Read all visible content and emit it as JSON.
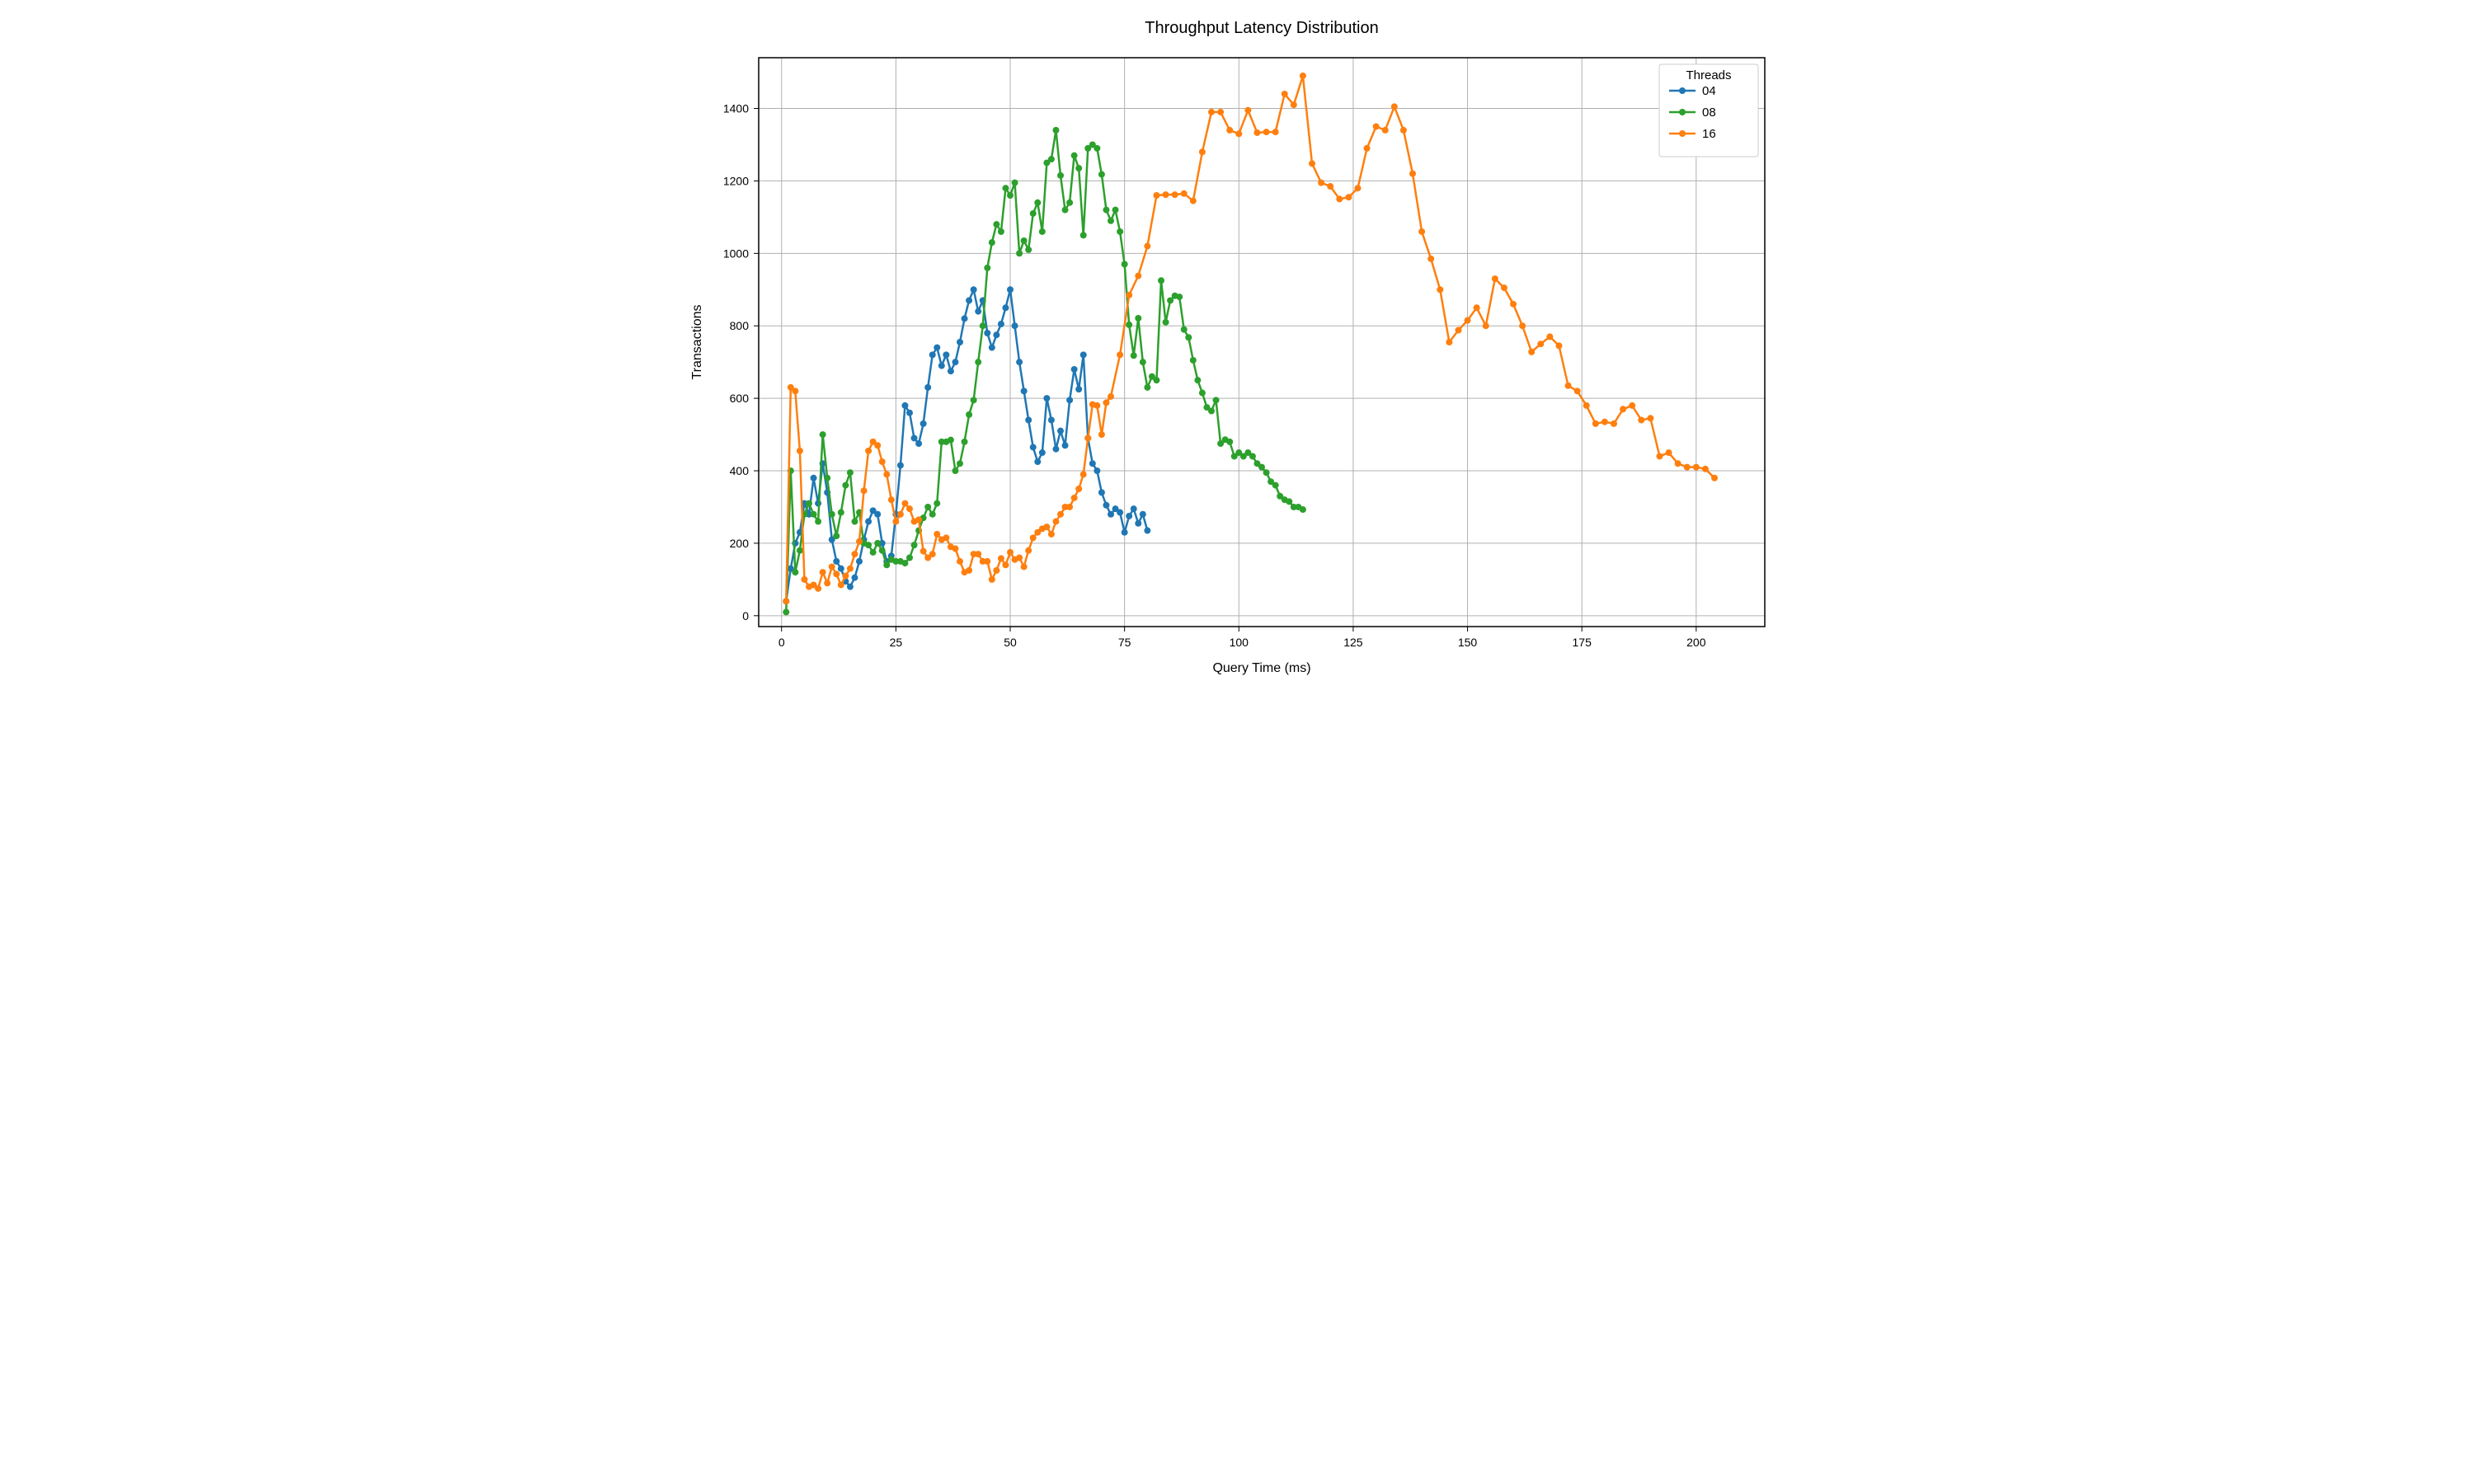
{
  "chart": {
    "type": "line",
    "title": "Throughput Latency Distribution",
    "title_fontsize": 20,
    "xlabel": "Query Time (ms)",
    "ylabel": "Transactions",
    "label_fontsize": 16,
    "tick_fontsize": 14,
    "xlim": [
      -5,
      215
    ],
    "ylim": [
      -30,
      1540
    ],
    "xticks": [
      0,
      25,
      50,
      75,
      100,
      125,
      150,
      175,
      200
    ],
    "yticks": [
      0,
      200,
      400,
      600,
      800,
      1000,
      1200,
      1400
    ],
    "background_color": "#ffffff",
    "grid_color": "#b0b0b0",
    "grid": true,
    "line_width": 2.5,
    "marker_size": 4,
    "legend": {
      "title": "Threads",
      "position": "upper-right",
      "labels": [
        "04",
        "08",
        "16"
      ]
    },
    "series": [
      {
        "name": "04",
        "color": "#1f77b4",
        "x": [
          1,
          2,
          3,
          4,
          5,
          6,
          7,
          8,
          9,
          10,
          11,
          12,
          13,
          14,
          15,
          16,
          17,
          18,
          19,
          20,
          21,
          22,
          23,
          24,
          25,
          26,
          27,
          28,
          29,
          30,
          31,
          32,
          33,
          34,
          35,
          36,
          37,
          38,
          39,
          40,
          41,
          42,
          43,
          44,
          45,
          46,
          47,
          48,
          49,
          50,
          51,
          52,
          53,
          54,
          55,
          56,
          57,
          58,
          59,
          60,
          61,
          62,
          63,
          64,
          65,
          66,
          67,
          68,
          69,
          70,
          71,
          72,
          73,
          74,
          75,
          76,
          77,
          78,
          79,
          80
        ],
        "y": [
          40,
          130,
          200,
          230,
          310,
          280,
          380,
          310,
          420,
          340,
          210,
          150,
          130,
          95,
          80,
          105,
          150,
          210,
          260,
          290,
          280,
          200,
          150,
          165,
          280,
          415,
          580,
          560,
          490,
          475,
          530,
          630,
          720,
          740,
          690,
          720,
          675,
          700,
          755,
          820,
          870,
          900,
          840,
          870,
          780,
          740,
          775,
          805,
          850,
          900,
          800,
          700,
          620,
          540,
          465,
          425,
          450,
          600,
          540,
          460,
          510,
          470,
          595,
          680,
          625,
          720,
          490,
          420,
          400,
          340,
          305,
          280,
          295,
          285,
          230,
          275,
          295,
          255,
          280,
          235
        ]
      },
      {
        "name": "08",
        "color": "#2ca02c",
        "x": [
          1,
          2,
          3,
          4,
          5,
          6,
          7,
          8,
          9,
          10,
          11,
          12,
          13,
          14,
          15,
          16,
          17,
          18,
          19,
          20,
          21,
          22,
          23,
          24,
          25,
          26,
          27,
          28,
          29,
          30,
          31,
          32,
          33,
          34,
          35,
          36,
          37,
          38,
          39,
          40,
          41,
          42,
          43,
          44,
          45,
          46,
          47,
          48,
          49,
          50,
          51,
          52,
          53,
          54,
          55,
          56,
          57,
          58,
          59,
          60,
          61,
          62,
          63,
          64,
          65,
          66,
          67,
          68,
          69,
          70,
          71,
          72,
          73,
          74,
          75,
          76,
          77,
          78,
          79,
          80,
          81,
          82,
          83,
          84,
          85,
          86,
          87,
          88,
          89,
          90,
          91,
          92,
          93,
          94,
          95,
          96,
          97,
          98,
          99,
          100,
          101,
          102,
          103,
          104,
          105,
          106,
          107,
          108,
          109,
          110,
          111,
          112,
          113,
          114
        ],
        "y": [
          10,
          400,
          120,
          180,
          280,
          310,
          280,
          260,
          500,
          380,
          280,
          220,
          285,
          360,
          395,
          260,
          285,
          200,
          195,
          175,
          200,
          180,
          140,
          155,
          150,
          150,
          145,
          160,
          195,
          235,
          270,
          300,
          280,
          310,
          480,
          480,
          485,
          400,
          420,
          480,
          555,
          595,
          700,
          800,
          960,
          1030,
          1080,
          1060,
          1180,
          1160,
          1195,
          1000,
          1035,
          1010,
          1110,
          1140,
          1060,
          1250,
          1260,
          1340,
          1215,
          1120,
          1140,
          1270,
          1235,
          1050,
          1290,
          1300,
          1290,
          1218,
          1120,
          1090,
          1120,
          1060,
          970,
          803,
          718,
          821,
          700,
          630,
          660,
          650,
          925,
          810,
          870,
          883,
          880,
          790,
          768,
          705,
          650,
          615,
          575,
          565,
          595,
          475,
          486,
          480,
          440,
          450,
          440,
          450,
          440,
          420,
          410,
          395,
          370,
          360,
          330,
          320,
          315,
          300,
          300,
          293
        ]
      },
      {
        "name": "16",
        "color": "#ff7f0e",
        "x": [
          1,
          2,
          3,
          4,
          5,
          6,
          7,
          8,
          9,
          10,
          11,
          12,
          13,
          14,
          15,
          16,
          17,
          18,
          19,
          20,
          21,
          22,
          23,
          24,
          25,
          26,
          27,
          28,
          29,
          30,
          31,
          32,
          33,
          34,
          35,
          36,
          37,
          38,
          39,
          40,
          41,
          42,
          43,
          44,
          45,
          46,
          47,
          48,
          49,
          50,
          51,
          52,
          53,
          54,
          55,
          56,
          57,
          58,
          59,
          60,
          61,
          62,
          63,
          64,
          65,
          66,
          67,
          68,
          69,
          70,
          71,
          72,
          74,
          76,
          78,
          80,
          82,
          84,
          86,
          88,
          90,
          92,
          94,
          96,
          98,
          100,
          102,
          104,
          106,
          108,
          110,
          112,
          114,
          116,
          118,
          120,
          122,
          124,
          126,
          128,
          130,
          132,
          134,
          136,
          138,
          140,
          142,
          144,
          146,
          148,
          150,
          152,
          154,
          156,
          158,
          160,
          162,
          164,
          166,
          168,
          170,
          172,
          174,
          176,
          178,
          180,
          182,
          184,
          186,
          188,
          190,
          192,
          194,
          196,
          198,
          200,
          202,
          204
        ],
        "y": [
          40,
          630,
          620,
          455,
          100,
          80,
          85,
          75,
          120,
          90,
          135,
          115,
          85,
          110,
          130,
          170,
          205,
          345,
          455,
          480,
          470,
          425,
          390,
          320,
          260,
          280,
          310,
          295,
          260,
          265,
          178,
          160,
          170,
          225,
          210,
          215,
          190,
          185,
          150,
          120,
          125,
          170,
          170,
          150,
          150,
          100,
          125,
          158,
          140,
          175,
          155,
          160,
          135,
          180,
          215,
          230,
          240,
          245,
          225,
          260,
          280,
          300,
          300,
          325,
          350,
          390,
          490,
          583,
          580,
          500,
          588,
          605,
          720,
          885,
          938,
          1020,
          1160,
          1162,
          1162,
          1165,
          1145,
          1280,
          1390,
          1390,
          1340,
          1330,
          1395,
          1333,
          1335,
          1335,
          1440,
          1410,
          1490,
          1248,
          1195,
          1185,
          1150,
          1155,
          1180,
          1290,
          1350,
          1340,
          1405,
          1340,
          1220,
          1060,
          985,
          900,
          755,
          788,
          815,
          850,
          800,
          930,
          905,
          860,
          800,
          728,
          750,
          770,
          745,
          635,
          620,
          580,
          530,
          535,
          530,
          570,
          580,
          540,
          545,
          440,
          450,
          420,
          410,
          410,
          405,
          380
        ]
      }
    ]
  }
}
